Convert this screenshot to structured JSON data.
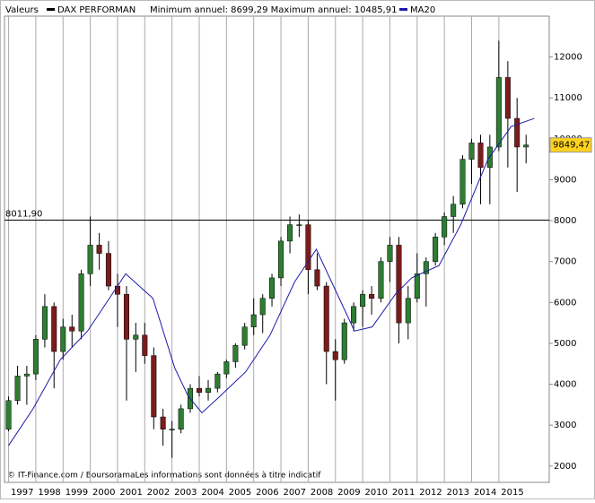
{
  "chart_data": {
    "type": "candlestick",
    "legend_label": "Valeurs",
    "title": "DAX PERFORMAN",
    "subtitle": "Minimum annuel: 8699,29 Maximum annuel: 10485,91",
    "footer": "© IT-Finance.com / BoursoramaLes informations sont données à titre indicatif",
    "up_color": "#2e7d32",
    "down_color": "#7b1c1c",
    "x": [
      1997,
      1997.33,
      1997.67,
      1998,
      1998.33,
      1998.67,
      1999,
      1999.33,
      1999.67,
      2000,
      2000.33,
      2000.67,
      2001,
      2001.33,
      2001.67,
      2002,
      2002.33,
      2002.67,
      2003,
      2003.33,
      2003.67,
      2004,
      2004.33,
      2004.67,
      2005,
      2005.33,
      2005.67,
      2006,
      2006.33,
      2006.67,
      2007,
      2007.33,
      2007.67,
      2008,
      2008.33,
      2008.67,
      2009,
      2009.33,
      2009.67,
      2010,
      2010.33,
      2010.67,
      2011,
      2011.33,
      2011.67,
      2012,
      2012.33,
      2012.67,
      2013,
      2013.33,
      2013.67,
      2014,
      2014.33,
      2014.67,
      2015,
      2015.33,
      2015.67,
      2016
    ],
    "open": [
      2900,
      3600,
      4200,
      4250,
      5100,
      5900,
      4800,
      5400,
      5300,
      6700,
      7400,
      7200,
      6400,
      6200,
      5100,
      5200,
      4700,
      3200,
      2900,
      2900,
      3400,
      3900,
      3800,
      3900,
      4250,
      4550,
      4950,
      5400,
      5700,
      6100,
      6600,
      7500,
      7900,
      7900,
      6800,
      6400,
      4800,
      4600,
      5500,
      5900,
      6200,
      6100,
      7000,
      7400,
      5500,
      6100,
      6700,
      7000,
      7600,
      8100,
      8400,
      9500,
      9900,
      9300,
      9800,
      11500,
      10500,
      9800
    ],
    "high": [
      3700,
      4450,
      4450,
      5200,
      6200,
      6000,
      5600,
      5700,
      6800,
      8100,
      7700,
      7500,
      6700,
      6400,
      5500,
      5500,
      4900,
      3400,
      3100,
      3500,
      4000,
      4200,
      4100,
      4300,
      4600,
      5000,
      5500,
      6100,
      6200,
      6700,
      7600,
      8100,
      8150,
      8000,
      7200,
      6500,
      5100,
      5600,
      6000,
      6300,
      6400,
      7100,
      7600,
      7600,
      6400,
      7200,
      7100,
      7700,
      8200,
      8600,
      9600,
      10000,
      10100,
      10100,
      12400,
      11900,
      11000,
      10100
    ],
    "low": [
      2850,
      3500,
      3500,
      4100,
      4900,
      3900,
      4600,
      4900,
      5100,
      6400,
      6800,
      6300,
      5400,
      3600,
      4300,
      4500,
      2900,
      2500,
      2200,
      2800,
      3300,
      3700,
      3600,
      3800,
      4150,
      4400,
      4850,
      5200,
      5250,
      5900,
      6400,
      7200,
      7600,
      6200,
      6300,
      4000,
      3600,
      4500,
      5300,
      5400,
      5700,
      6000,
      6500,
      5000,
      5100,
      6000,
      5900,
      6900,
      7400,
      7700,
      8300,
      8900,
      8400,
      8400,
      9700,
      9300,
      8700,
      9400
    ],
    "close": [
      3600,
      4200,
      4250,
      5100,
      5900,
      4800,
      5400,
      5300,
      6700,
      7400,
      7200,
      6400,
      6200,
      5100,
      5200,
      4700,
      3200,
      2900,
      2900,
      3400,
      3900,
      3800,
      3900,
      4250,
      4550,
      4950,
      5400,
      5700,
      6100,
      6600,
      7500,
      7900,
      7900,
      6800,
      6400,
      4800,
      4600,
      5500,
      5900,
      6200,
      6100,
      7000,
      7400,
      5500,
      6100,
      6700,
      7000,
      7600,
      8100,
      8400,
      9500,
      9900,
      9300,
      9800,
      11500,
      10500,
      9800,
      9849.47
    ],
    "ma": {
      "name": "MA20",
      "color": "#1a1aa8",
      "x": [
        1997,
        1997.9,
        1998.9,
        1999.9,
        2001.3,
        2002.3,
        2003.1,
        2003.6,
        2004.1,
        2004.75,
        2005.7,
        2006.6,
        2007.5,
        2008.3,
        2009,
        2009.7,
        2010.35,
        2011.2,
        2011.8,
        2012.8,
        2013.6,
        2014.6,
        2015.45,
        2016.3
      ],
      "values": [
        2500,
        3400,
        4600,
        5300,
        6700,
        6100,
        4400,
        3700,
        3300,
        3700,
        4300,
        5200,
        6500,
        7300,
        6300,
        5300,
        5400,
        6200,
        6600,
        6900,
        7900,
        9500,
        10300,
        10500
      ]
    },
    "reference": {
      "value": 8011.9,
      "label": "8011,90"
    },
    "last_price": {
      "value": 9849.47,
      "label": "9849,47"
    },
    "xlim": [
      1996.85,
      2016.85
    ],
    "xticks": [
      1997,
      1998,
      1999,
      2000,
      2001,
      2002,
      2003,
      2004,
      2005,
      2006,
      2007,
      2008,
      2009,
      2010,
      2011,
      2012,
      2013,
      2014,
      2015
    ],
    "ylim": [
      1600,
      13000
    ],
    "yticks": [
      2000,
      3000,
      4000,
      5000,
      6000,
      7000,
      8000,
      9000,
      10000,
      11000,
      12000
    ],
    "grid": true
  }
}
